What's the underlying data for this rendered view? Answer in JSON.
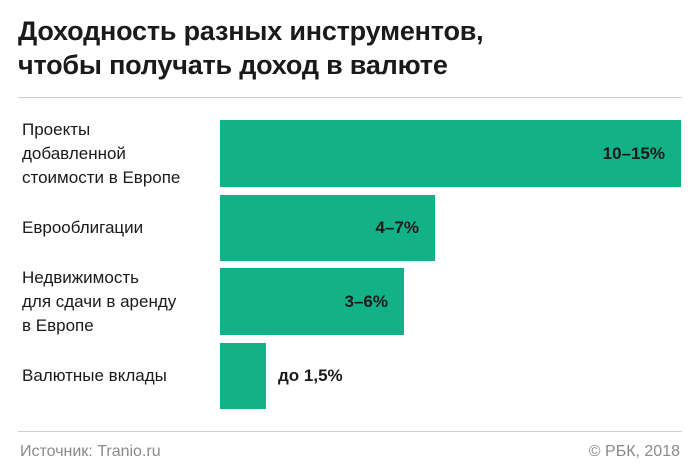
{
  "title": "Доходность разных инструментов,\nчтобы получать доход в валюте",
  "source": "Источник: Tranio.ru",
  "copyright": "© РБК, 2018",
  "colors": {
    "bar": "#13b187",
    "rule": "#cfcfcf",
    "footer_text": "#8a8a8a"
  },
  "chart_data": {
    "type": "bar",
    "orientation": "horizontal",
    "categories": [
      "Проекты\nдобавленной\nстоимости в Европе",
      "Еврооблигации",
      "Недвижимость\nдля сдачи в аренду\nв Европе",
      "Валютные вклады"
    ],
    "value_labels": [
      "10–15%",
      "4–7%",
      "3–6%",
      "до 1,5%"
    ],
    "ranges": [
      [
        10,
        15
      ],
      [
        4,
        7
      ],
      [
        3,
        6
      ],
      [
        0,
        1.5
      ]
    ],
    "values": [
      15,
      7,
      6,
      1.5
    ],
    "xlim": [
      0,
      15
    ]
  }
}
